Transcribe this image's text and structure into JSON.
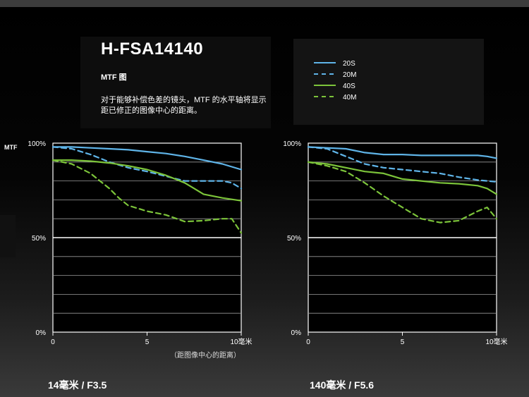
{
  "title": "H-FSA14140",
  "subtitle": "MTF 图",
  "description": "对于能够补偿色差的镜头，MTF 的水平轴将显示距已修正的图像中心的距离。",
  "mtf_label": "MTF",
  "x_axis_note": "（距图像中心的距离）",
  "colors": {
    "s20": "#5fb4e8",
    "m20": "#5fb4e8",
    "s40": "#7cc43a",
    "m40": "#7cc43a"
  },
  "legend": [
    {
      "label": "20S",
      "color": "#5fb4e8",
      "dashed": false
    },
    {
      "label": "20M",
      "color": "#5fb4e8",
      "dashed": true
    },
    {
      "label": "40S",
      "color": "#7cc43a",
      "dashed": false
    },
    {
      "label": "40M",
      "color": "#7cc43a",
      "dashed": true
    }
  ],
  "chart_data": [
    {
      "type": "line",
      "caption": "14毫米 / F3.5",
      "xlim": [
        0,
        10
      ],
      "ylim": [
        0,
        100
      ],
      "xticks": [
        "0",
        "5",
        "10毫米"
      ],
      "yticks": [
        "100%",
        "50%",
        "0%"
      ],
      "series": [
        {
          "name": "20S",
          "dashed": false,
          "color": "#5fb4e8",
          "x": [
            0,
            1,
            2,
            3,
            4,
            5,
            6,
            7,
            8,
            9,
            9.5,
            10
          ],
          "y": [
            98,
            98,
            97.5,
            97,
            96.5,
            95.5,
            94.5,
            93,
            91,
            89,
            87.5,
            86
          ]
        },
        {
          "name": "20M",
          "dashed": true,
          "color": "#5fb4e8",
          "x": [
            0,
            1,
            2,
            3,
            4,
            5,
            6,
            7,
            8,
            9,
            9.5,
            10
          ],
          "y": [
            98,
            97,
            94,
            90,
            87,
            85,
            82.5,
            80,
            80,
            80,
            79,
            76
          ]
        },
        {
          "name": "40S",
          "dashed": false,
          "color": "#7cc43a",
          "x": [
            0,
            1,
            2,
            3,
            4,
            5,
            6,
            7,
            7.5,
            8,
            9,
            10
          ],
          "y": [
            91,
            91,
            90.5,
            89.5,
            88,
            86,
            83,
            79,
            76,
            73,
            71,
            69.5
          ]
        },
        {
          "name": "40M",
          "dashed": true,
          "color": "#7cc43a",
          "x": [
            0,
            1,
            2,
            3,
            3.5,
            4,
            5,
            6,
            7,
            8,
            9,
            9.5,
            10
          ],
          "y": [
            91,
            89,
            84,
            76,
            71,
            67,
            64,
            62,
            58.5,
            59,
            60,
            60,
            52.5
          ]
        }
      ]
    },
    {
      "type": "line",
      "caption": "140毫米 / F5.6",
      "xlim": [
        0,
        10
      ],
      "ylim": [
        0,
        100
      ],
      "xticks": [
        "0",
        "5",
        "10毫米"
      ],
      "yticks": [
        "100%",
        "50%",
        "0%"
      ],
      "series": [
        {
          "name": "20S",
          "dashed": false,
          "color": "#5fb4e8",
          "x": [
            0,
            1,
            2,
            3,
            4,
            5,
            6,
            7,
            8,
            9,
            9.5,
            10
          ],
          "y": [
            98,
            97.5,
            97,
            95,
            94,
            94,
            93.5,
            93.5,
            93.5,
            93.5,
            93,
            92
          ]
        },
        {
          "name": "20M",
          "dashed": true,
          "color": "#5fb4e8",
          "x": [
            0,
            1,
            2,
            3,
            4,
            5,
            6,
            7,
            8,
            9,
            10
          ],
          "y": [
            98,
            97,
            93,
            89,
            87,
            86,
            85,
            84,
            82,
            80.5,
            79.5
          ]
        },
        {
          "name": "40S",
          "dashed": false,
          "color": "#7cc43a",
          "x": [
            0,
            1,
            2,
            3,
            4,
            5,
            6,
            7,
            8,
            9,
            9.5,
            10
          ],
          "y": [
            90,
            89,
            87,
            85,
            84,
            81,
            80,
            79,
            78.5,
            77.5,
            76,
            73
          ]
        },
        {
          "name": "40M",
          "dashed": true,
          "color": "#7cc43a",
          "x": [
            0,
            1,
            2,
            3,
            4,
            5,
            6,
            7,
            8,
            9,
            9.5,
            10
          ],
          "y": [
            90,
            88,
            85,
            79,
            72,
            66,
            60,
            58,
            59,
            64,
            66,
            60
          ]
        }
      ]
    }
  ]
}
